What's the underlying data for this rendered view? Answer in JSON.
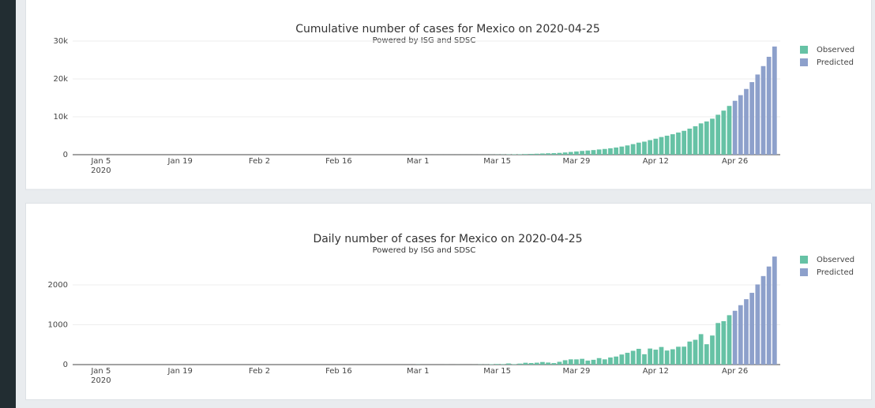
{
  "chart_data": [
    {
      "type": "bar",
      "title": "Cumulative number of cases for Mexico on 2020-04-25",
      "subtitle": "Powered by ISG and SDSC",
      "x": [
        "2020-03-01",
        "2020-03-02",
        "2020-03-03",
        "2020-03-04",
        "2020-03-05",
        "2020-03-06",
        "2020-03-07",
        "2020-03-08",
        "2020-03-09",
        "2020-03-10",
        "2020-03-11",
        "2020-03-12",
        "2020-03-13",
        "2020-03-14",
        "2020-03-15",
        "2020-03-16",
        "2020-03-17",
        "2020-03-18",
        "2020-03-19",
        "2020-03-20",
        "2020-03-21",
        "2020-03-22",
        "2020-03-23",
        "2020-03-24",
        "2020-03-25",
        "2020-03-26",
        "2020-03-27",
        "2020-03-28",
        "2020-03-29",
        "2020-03-30",
        "2020-03-31",
        "2020-04-01",
        "2020-04-02",
        "2020-04-03",
        "2020-04-04",
        "2020-04-05",
        "2020-04-06",
        "2020-04-07",
        "2020-04-08",
        "2020-04-09",
        "2020-04-10",
        "2020-04-11",
        "2020-04-12",
        "2020-04-13",
        "2020-04-14",
        "2020-04-15",
        "2020-04-16",
        "2020-04-17",
        "2020-04-18",
        "2020-04-19",
        "2020-04-20",
        "2020-04-21",
        "2020-04-22",
        "2020-04-23",
        "2020-04-24",
        "2020-04-25",
        "2020-04-26",
        "2020-04-27",
        "2020-04-28",
        "2020-04-29",
        "2020-04-30",
        "2020-05-01",
        "2020-05-02",
        "2020-05-03"
      ],
      "series": [
        {
          "name": "Observed",
          "color": "#66c2a5",
          "values": [
            5,
            5,
            5,
            5,
            5,
            6,
            6,
            7,
            7,
            7,
            8,
            12,
            16,
            26,
            41,
            53,
            82,
            93,
            118,
            164,
            203,
            251,
            316,
            367,
            405,
            475,
            585,
            717,
            848,
            993,
            1094,
            1215,
            1378,
            1510,
            1688,
            1890,
            2143,
            2439,
            2785,
            3181,
            3441,
            3844,
            4219,
            4661,
            5014,
            5399,
            5847,
            6297,
            6875,
            7497,
            8261,
            8772,
            9501,
            10544,
            11633,
            12872,
            null,
            null,
            null,
            null,
            null,
            null,
            null,
            null
          ]
        },
        {
          "name": "Predicted",
          "color": "#8da0cb",
          "values": [
            null,
            null,
            null,
            null,
            null,
            null,
            null,
            null,
            null,
            null,
            null,
            null,
            null,
            null,
            null,
            null,
            null,
            null,
            null,
            null,
            null,
            null,
            null,
            null,
            null,
            null,
            null,
            null,
            null,
            null,
            null,
            null,
            null,
            null,
            null,
            null,
            null,
            null,
            null,
            null,
            null,
            null,
            null,
            null,
            null,
            null,
            null,
            null,
            null,
            null,
            null,
            null,
            null,
            null,
            null,
            null,
            14222,
            15712,
            17352,
            19152,
            21162,
            23382,
            25842,
            28552
          ]
        }
      ],
      "xlim": [
        "2019-12-31",
        "2020-05-04"
      ],
      "xticks": [
        {
          "value": "2020-01-05",
          "label": "Jan 5"
        },
        {
          "value": "2020-01-19",
          "label": "Jan 19"
        },
        {
          "value": "2020-02-02",
          "label": "Feb 2"
        },
        {
          "value": "2020-02-16",
          "label": "Feb 16"
        },
        {
          "value": "2020-03-01",
          "label": "Mar 1"
        },
        {
          "value": "2020-03-15",
          "label": "Mar 15"
        },
        {
          "value": "2020-03-29",
          "label": "Mar 29"
        },
        {
          "value": "2020-04-12",
          "label": "Apr 12"
        },
        {
          "value": "2020-04-26",
          "label": "Apr 26"
        }
      ],
      "x_year": "2020",
      "ylim": [
        0,
        30000
      ],
      "yticks": [
        0,
        {
          "value": 10000,
          "label": "10k"
        },
        {
          "value": 20000,
          "label": "20k"
        },
        {
          "value": 30000,
          "label": "30k"
        }
      ],
      "grid": true
    },
    {
      "type": "bar",
      "title": "Daily number of cases for Mexico on 2020-04-25",
      "subtitle": "Powered by ISG and SDSC",
      "x": [
        "2020-03-01",
        "2020-03-02",
        "2020-03-03",
        "2020-03-04",
        "2020-03-05",
        "2020-03-06",
        "2020-03-07",
        "2020-03-08",
        "2020-03-09",
        "2020-03-10",
        "2020-03-11",
        "2020-03-12",
        "2020-03-13",
        "2020-03-14",
        "2020-03-15",
        "2020-03-16",
        "2020-03-17",
        "2020-03-18",
        "2020-03-19",
        "2020-03-20",
        "2020-03-21",
        "2020-03-22",
        "2020-03-23",
        "2020-03-24",
        "2020-03-25",
        "2020-03-26",
        "2020-03-27",
        "2020-03-28",
        "2020-03-29",
        "2020-03-30",
        "2020-03-31",
        "2020-04-01",
        "2020-04-02",
        "2020-04-03",
        "2020-04-04",
        "2020-04-05",
        "2020-04-06",
        "2020-04-07",
        "2020-04-08",
        "2020-04-09",
        "2020-04-10",
        "2020-04-11",
        "2020-04-12",
        "2020-04-13",
        "2020-04-14",
        "2020-04-15",
        "2020-04-16",
        "2020-04-17",
        "2020-04-18",
        "2020-04-19",
        "2020-04-20",
        "2020-04-21",
        "2020-04-22",
        "2020-04-23",
        "2020-04-24",
        "2020-04-25",
        "2020-04-26",
        "2020-04-27",
        "2020-04-28",
        "2020-04-29",
        "2020-04-30",
        "2020-05-01",
        "2020-05-02",
        "2020-05-03"
      ],
      "series": [
        {
          "name": "Observed",
          "color": "#66c2a5",
          "values": [
            3,
            0,
            0,
            0,
            0,
            1,
            0,
            1,
            0,
            0,
            1,
            4,
            4,
            10,
            15,
            12,
            29,
            11,
            25,
            46,
            39,
            48,
            65,
            51,
            38,
            70,
            110,
            132,
            131,
            145,
            101,
            121,
            163,
            132,
            178,
            202,
            253,
            296,
            346,
            396,
            260,
            403,
            375,
            442,
            353,
            385,
            448,
            450,
            578,
            622,
            764,
            511,
            729,
            1043,
            1089,
            1239,
            null,
            null,
            null,
            null,
            null,
            null,
            null,
            null
          ]
        },
        {
          "name": "Predicted",
          "color": "#8da0cb",
          "values": [
            null,
            null,
            null,
            null,
            null,
            null,
            null,
            null,
            null,
            null,
            null,
            null,
            null,
            null,
            null,
            null,
            null,
            null,
            null,
            null,
            null,
            null,
            null,
            null,
            null,
            null,
            null,
            null,
            null,
            null,
            null,
            null,
            null,
            null,
            null,
            null,
            null,
            null,
            null,
            null,
            null,
            null,
            null,
            null,
            null,
            null,
            null,
            null,
            null,
            null,
            null,
            null,
            null,
            null,
            null,
            null,
            1350,
            1490,
            1640,
            1800,
            2010,
            2220,
            2460,
            2710
          ]
        }
      ],
      "xlim": [
        "2019-12-31",
        "2020-05-04"
      ],
      "xticks": [
        {
          "value": "2020-01-05",
          "label": "Jan 5"
        },
        {
          "value": "2020-01-19",
          "label": "Jan 19"
        },
        {
          "value": "2020-02-02",
          "label": "Feb 2"
        },
        {
          "value": "2020-02-16",
          "label": "Feb 16"
        },
        {
          "value": "2020-03-01",
          "label": "Mar 1"
        },
        {
          "value": "2020-03-15",
          "label": "Mar 15"
        },
        {
          "value": "2020-03-29",
          "label": "Mar 29"
        },
        {
          "value": "2020-04-12",
          "label": "Apr 12"
        },
        {
          "value": "2020-04-26",
          "label": "Apr 26"
        }
      ],
      "x_year": "2020",
      "ylim": [
        0,
        2850
      ],
      "yticks": [
        0,
        1000,
        2000
      ],
      "grid": true
    }
  ]
}
